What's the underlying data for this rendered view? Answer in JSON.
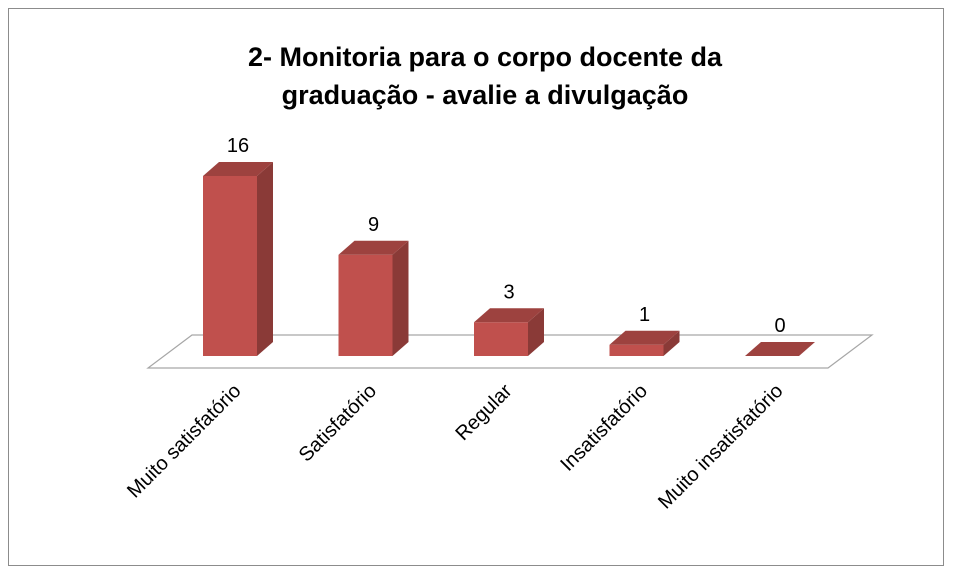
{
  "chart_data": {
    "type": "bar3d",
    "title": "2- Monitoria para o corpo docente da graduação - avalie a divulgação",
    "categories": [
      "Muito satisfatório",
      "Satisfatório",
      "Regular",
      "Insatisfatório",
      "Muito insatisfatório"
    ],
    "values": [
      16,
      9,
      3,
      1,
      0
    ],
    "color": "#c0504d"
  }
}
